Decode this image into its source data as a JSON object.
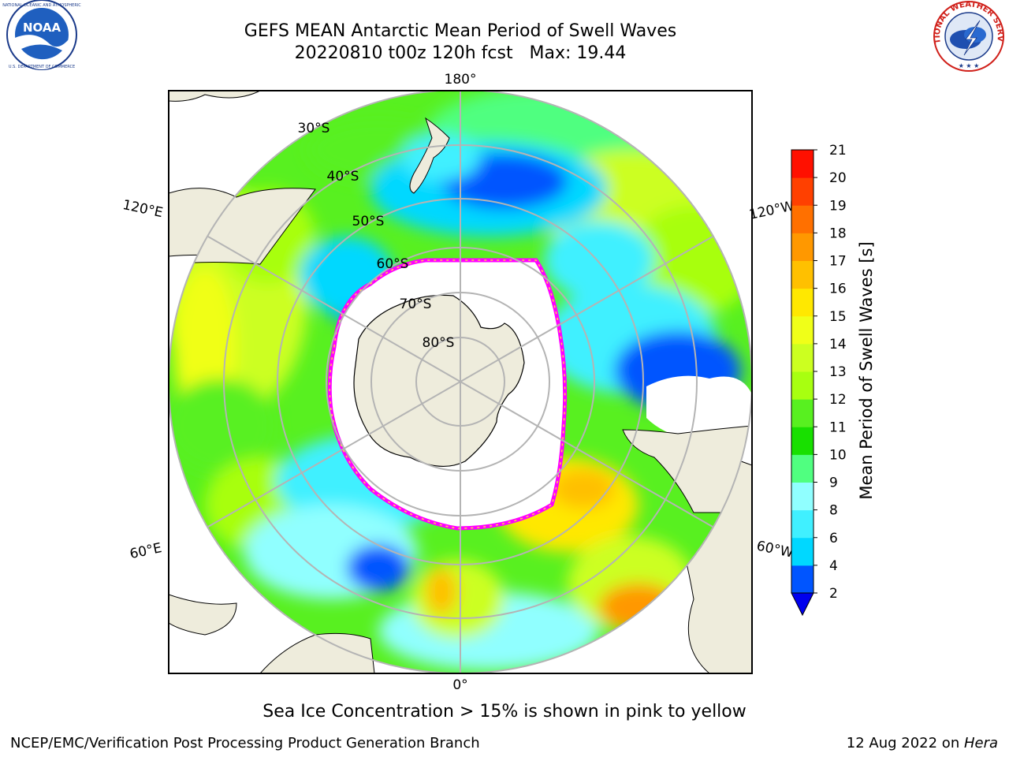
{
  "header": {
    "title_line1": "GEFS MEAN Antarctic Mean Period of Swell Waves",
    "title_line2": "20220810 t00z 120h fcst   Max: 19.44"
  },
  "logos": {
    "left": {
      "name": "noaa-logo",
      "text": "NOAA"
    },
    "right": {
      "name": "nws-logo",
      "text": "NATIONAL WEATHER SERVICE"
    }
  },
  "map": {
    "projection": "south-polar-stereographic",
    "longitude_labels": {
      "top": "180°",
      "upper_left": "120°E",
      "upper_right": "120°W",
      "lower_left": "60°E",
      "lower_right": "60°W",
      "bottom": "0°"
    },
    "latitude_labels": [
      "30°S",
      "40°S",
      "50°S",
      "60°S",
      "70°S",
      "80°S"
    ],
    "colors": {
      "land": "#eeecdc",
      "sea_ice_edge_pink": "#ff00ff",
      "sea_ice_edge_yellow": "#ffd54a",
      "graticule": "#b4b4b4"
    }
  },
  "colorbar": {
    "label": "Mean Period of Swell Waves [s]",
    "ticks": [
      "2",
      "4",
      "6",
      "8",
      "9",
      "10",
      "11",
      "12",
      "13",
      "14",
      "15",
      "16",
      "17",
      "18",
      "19",
      "20",
      "21"
    ],
    "colors": [
      "#0055ff",
      "#00d8ff",
      "#40f0ff",
      "#90ffff",
      "#50ff80",
      "#18e000",
      "#58f020",
      "#a8ff10",
      "#ccff20",
      "#f0ff18",
      "#ffe800",
      "#ffc000",
      "#ff9800",
      "#ff7000",
      "#ff4000",
      "#ff1000"
    ],
    "under_color": "#0000ee"
  },
  "footer": {
    "note": "Sea Ice Concentration > 15% is shown in pink to yellow",
    "credit": "NCEP/EMC/Verification Post Processing Product Generation Branch",
    "date": "12 Aug 2022 on ",
    "machine": "Hera"
  }
}
